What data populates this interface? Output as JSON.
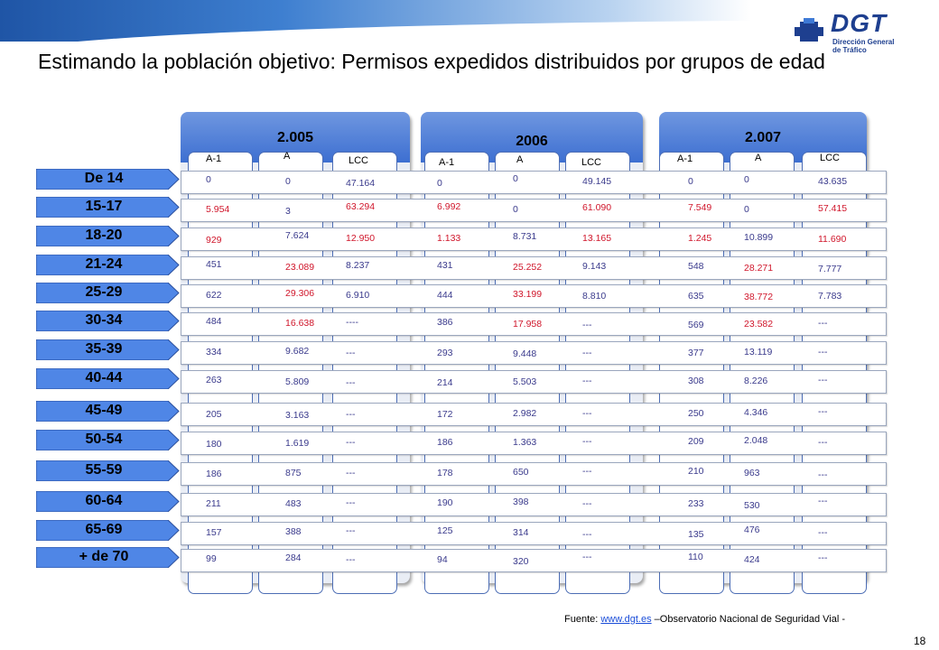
{
  "slide": {
    "title": "Estimando la población objetivo: Permisos expedidos distribuidos por grupos de edad",
    "logo_text": "DGT",
    "logo_subtitle": "Dirección General de Tráfico",
    "source_prefix": "Fuente: ",
    "source_link": "www.dgt.es",
    "source_suffix": " –Observatorio Nacional de Seguridad Vial -",
    "page_number": "18"
  },
  "colors": {
    "header_blue": "#3d6fd1",
    "value_blue": "#3a3a8c",
    "value_red": "#d0162b",
    "age_label_bg": "#4f86e6"
  },
  "table": {
    "years": [
      "2.005",
      "2006",
      "2.007"
    ],
    "column_headers": [
      "A-1",
      "A",
      "LCC"
    ],
    "age_groups": [
      "De 14",
      "15-17",
      "18-20",
      "21-24",
      "25-29",
      "30-34",
      "35-39",
      "40-44",
      "45-49",
      "50-54",
      "55-59",
      "60-64",
      "65-69",
      "+ de 70"
    ],
    "red_cells_note": "values shown in red in the original",
    "values": {
      "2005": {
        "A-1": [
          "0",
          "5.954",
          "929",
          "451",
          "622",
          "484",
          "334",
          "263",
          "205",
          "180",
          "186",
          "211",
          "157",
          "99"
        ],
        "A": [
          "0",
          "3",
          "7.624",
          "23.089",
          "29.306",
          "16.638",
          "9.682",
          "5.809",
          "3.163",
          "1.619",
          "875",
          "483",
          "388",
          "284"
        ],
        "LCC": [
          "47.164",
          "63.294",
          "12.950",
          "8.237",
          "6.910",
          "----",
          "---",
          "---",
          "---",
          "---",
          "---",
          "---",
          "---",
          "---"
        ]
      },
      "2006": {
        "A-1": [
          "0",
          "6.992",
          "1.133",
          "431",
          "444",
          "386",
          "293",
          "214",
          "172",
          "186",
          "178",
          "190",
          "125",
          "94"
        ],
        "A": [
          "0",
          "0",
          "8.731",
          "25.252",
          "33.199",
          "17.958",
          "9.448",
          "5.503",
          "2.982",
          "1.363",
          "650",
          "398",
          "314",
          "320"
        ],
        "LCC": [
          "49.145",
          "61.090",
          "13.165",
          "9.143",
          "8.810",
          "---",
          "---",
          "---",
          "---",
          "---",
          "---",
          "---",
          "---",
          "---"
        ]
      },
      "2007": {
        "A-1": [
          "0",
          "7.549",
          "1.245",
          "548",
          "635",
          "569",
          "377",
          "308",
          "250",
          "209",
          "210",
          "233",
          "135",
          "110"
        ],
        "A": [
          "0",
          "0",
          "10.899",
          "28.271",
          "38.772",
          "23.582",
          "13.119",
          "8.226",
          "4.346",
          "2.048",
          "963",
          "530",
          "476",
          "424"
        ],
        "LCC": [
          "43.635",
          "57.415",
          "11.690",
          "7.777",
          "7.783",
          "---",
          "---",
          "---",
          "---",
          "---",
          "---",
          "---",
          "---",
          "---"
        ]
      }
    }
  }
}
